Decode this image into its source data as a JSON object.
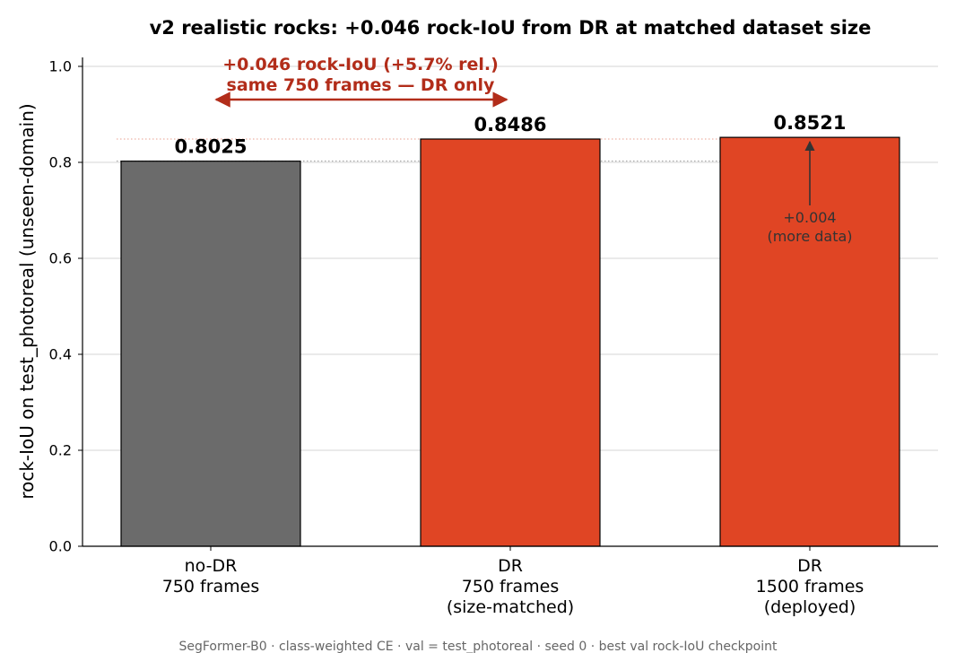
{
  "chart_data": {
    "type": "bar",
    "title": "v2 realistic rocks: +0.046 rock-IoU from DR at matched dataset size",
    "ylabel": "rock-IoU on test_photoreal (unseen-domain)",
    "xlabel": "",
    "ylim": [
      0,
      1.0
    ],
    "yticks": [
      "0.0",
      "0.2",
      "0.4",
      "0.6",
      "0.8",
      "1.0"
    ],
    "grid": "horizontal",
    "categories": [
      [
        "no-DR",
        "750 frames"
      ],
      [
        "DR",
        "750 frames",
        "(size-matched)"
      ],
      [
        "DR",
        "1500 frames",
        "(deployed)"
      ]
    ],
    "values": [
      0.8025,
      0.8486,
      0.8521
    ],
    "value_labels": [
      "0.8025",
      "0.8486",
      "0.8521"
    ],
    "colors": [
      "#6b6b6b",
      "#e04524",
      "#e04524"
    ],
    "annotations": {
      "dr_gain_line1": "+0.046 rock-IoU  (+5.7% rel.)",
      "dr_gain_line2": "same 750 frames — DR only",
      "data_gain_line1": "+0.004",
      "data_gain_line2": "(more data)"
    },
    "footer": "SegFormer-B0 · class-weighted CE · val = test_photoreal · seed 0 · best val rock-IoU checkpoint"
  }
}
